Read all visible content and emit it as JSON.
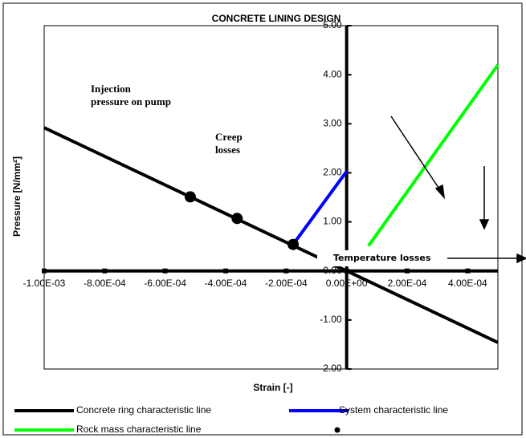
{
  "chart_data": {
    "type": "line",
    "title": "CONCRETE LINING DESIGN",
    "x_label": "Strain [-]",
    "y_label": "Pressure [N/mm²]",
    "xlim": [
      -0.001,
      0.0005
    ],
    "ylim": [
      -2,
      5
    ],
    "xticks": [
      {
        "value": -0.001,
        "label": "-1.00E-03"
      },
      {
        "value": -0.0008,
        "label": "-8.00E-04"
      },
      {
        "value": -0.0006,
        "label": "-6.00E-04"
      },
      {
        "value": -0.0004,
        "label": "-4.00E-04"
      },
      {
        "value": -0.0002,
        "label": "-2.00E-04"
      },
      {
        "value": 0,
        "label": "0.00E+00"
      },
      {
        "value": 0.0002,
        "label": "2.00E-04"
      },
      {
        "value": 0.0004,
        "label": "4.00E-04"
      }
    ],
    "yticks": [
      {
        "value": 5,
        "label": "5.00"
      },
      {
        "value": 4,
        "label": "4.00"
      },
      {
        "value": 3,
        "label": "3.00"
      },
      {
        "value": 2,
        "label": "2.00"
      },
      {
        "value": 1,
        "label": "1.00"
      },
      {
        "value": 0,
        "label": "0.00"
      },
      {
        "value": -1,
        "label": "-1.00"
      },
      {
        "value": -2,
        "label": "-2.00"
      }
    ],
    "series": [
      {
        "name": "Concrete ring characteristic line",
        "color": "#000000",
        "x": [
          -0.001,
          0.0005
        ],
        "values": [
          2.92,
          -1.46
        ]
      },
      {
        "name": "System characteristic line",
        "color": "#0000ff",
        "x": [
          -0.000177,
          0
        ],
        "values": [
          0.54,
          2.03
        ]
      },
      {
        "name": "Rock mass characteristic line",
        "color": "#00ff00",
        "x": [
          7.2e-05,
          0.0005
        ],
        "values": [
          0.51,
          4.2
        ]
      },
      {
        "marker": "dot",
        "color": "#000000",
        "x": [
          -0.000517,
          -0.000362,
          -0.000177
        ],
        "values": [
          1.51,
          1.07,
          0.54
        ]
      }
    ],
    "annotations": [
      "Injection  pressure on pump",
      "Creep losses",
      "Temperature losses"
    ]
  }
}
